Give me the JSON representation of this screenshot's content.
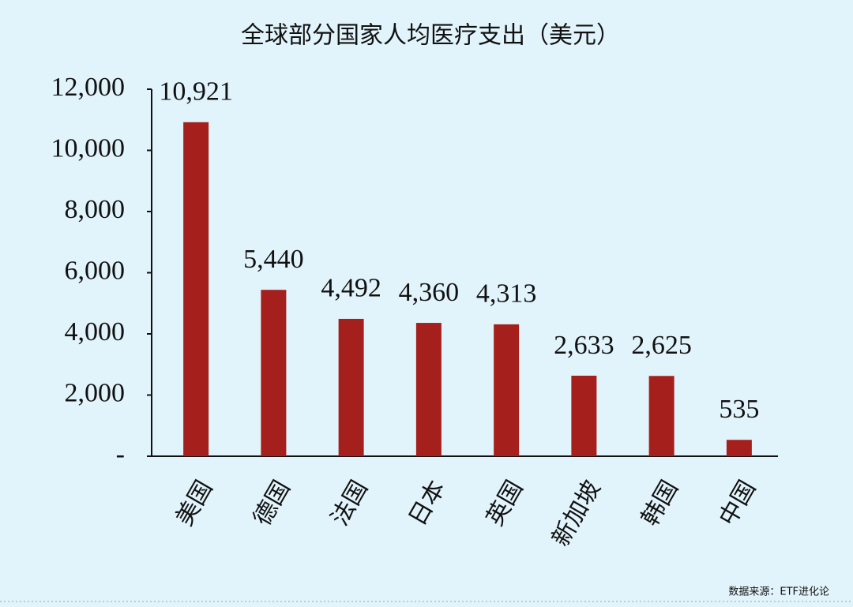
{
  "chart_data": {
    "type": "bar",
    "title": "全球部分国家人均医疗支出（美元）",
    "categories": [
      "美国",
      "德国",
      "法国",
      "日本",
      "英国",
      "新加坡",
      "韩国",
      "中国"
    ],
    "values": [
      10921,
      5440,
      4492,
      4360,
      4313,
      2633,
      2625,
      535
    ],
    "value_labels": [
      "10,921",
      "5,440",
      "4,492",
      "4,360",
      "4,313",
      "2,633",
      "2,625",
      "535"
    ],
    "color": "#a5201c",
    "ylim": [
      0,
      12000
    ],
    "yticks": [
      {
        "value": 0,
        "label": "-"
      },
      {
        "value": 2000,
        "label": "2,000"
      },
      {
        "value": 4000,
        "label": "4,000"
      },
      {
        "value": 6000,
        "label": "6,000"
      },
      {
        "value": 8000,
        "label": "8,000"
      },
      {
        "value": 10000,
        "label": "10,000"
      },
      {
        "value": 12000,
        "label": "12,000"
      }
    ],
    "grid": false,
    "source": "数据来源：ETF进化论"
  }
}
